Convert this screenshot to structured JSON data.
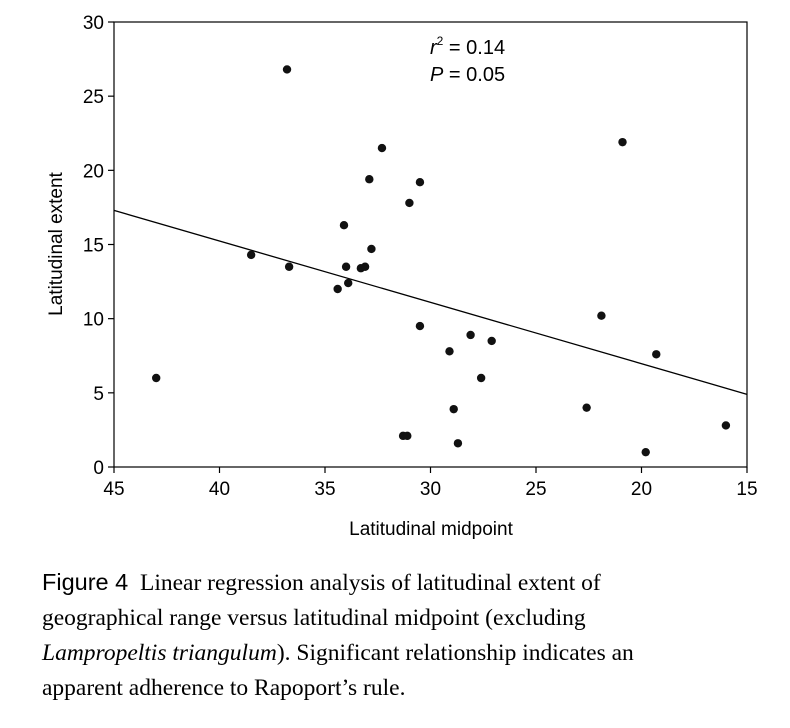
{
  "chart_data": {
    "type": "scatter",
    "xlabel": "Latitudinal midpoint",
    "ylabel": "Latitudinal extent",
    "xlim": [
      45,
      15
    ],
    "ylim": [
      0,
      30
    ],
    "x_reversed": true,
    "x_ticks": [
      45,
      40,
      35,
      30,
      25,
      20,
      15
    ],
    "y_ticks": [
      0,
      5,
      10,
      15,
      20,
      25,
      30
    ],
    "grid": false,
    "legend": "none",
    "points": [
      {
        "x": 43.0,
        "y": 6.0
      },
      {
        "x": 38.5,
        "y": 14.3
      },
      {
        "x": 36.8,
        "y": 26.8
      },
      {
        "x": 36.7,
        "y": 13.5
      },
      {
        "x": 34.4,
        "y": 12.0
      },
      {
        "x": 34.1,
        "y": 16.3
      },
      {
        "x": 34.0,
        "y": 13.5
      },
      {
        "x": 33.9,
        "y": 12.4
      },
      {
        "x": 33.3,
        "y": 13.4
      },
      {
        "x": 33.1,
        "y": 13.5
      },
      {
        "x": 32.9,
        "y": 19.4
      },
      {
        "x": 32.8,
        "y": 14.7
      },
      {
        "x": 32.3,
        "y": 21.5
      },
      {
        "x": 31.3,
        "y": 2.1
      },
      {
        "x": 31.1,
        "y": 2.1
      },
      {
        "x": 31.0,
        "y": 17.8
      },
      {
        "x": 30.5,
        "y": 19.2
      },
      {
        "x": 30.5,
        "y": 9.5
      },
      {
        "x": 29.1,
        "y": 7.8
      },
      {
        "x": 28.9,
        "y": 3.9
      },
      {
        "x": 28.7,
        "y": 1.6
      },
      {
        "x": 28.1,
        "y": 8.9
      },
      {
        "x": 27.6,
        "y": 6.0
      },
      {
        "x": 27.1,
        "y": 8.5
      },
      {
        "x": 22.6,
        "y": 4.0
      },
      {
        "x": 21.9,
        "y": 10.2
      },
      {
        "x": 20.9,
        "y": 21.9
      },
      {
        "x": 19.8,
        "y": 1.0
      },
      {
        "x": 19.3,
        "y": 7.6
      },
      {
        "x": 16.0,
        "y": 2.8
      }
    ],
    "regression_line": {
      "x": [
        45,
        15
      ],
      "y": [
        17.3,
        4.9
      ]
    },
    "annotations": {
      "r2_prefix": "r",
      "r2_sup": "2",
      "r2_value": " = 0.14",
      "p_prefix": "P",
      "p_value": " = 0.05"
    },
    "colors": {
      "points": "#111111",
      "line": "#000000",
      "axes": "#000000"
    }
  },
  "caption": {
    "label": "Figure 4",
    "line1_text": "Linear regression analysis of latitudinal extent of",
    "line2": "geographical range versus latitudinal midpoint (excluding",
    "line3_species": "Lampropeltis triangulum",
    "line3_rest": "). Significant relationship indicates an",
    "line4": "apparent adherence to Rapoport’s rule."
  }
}
